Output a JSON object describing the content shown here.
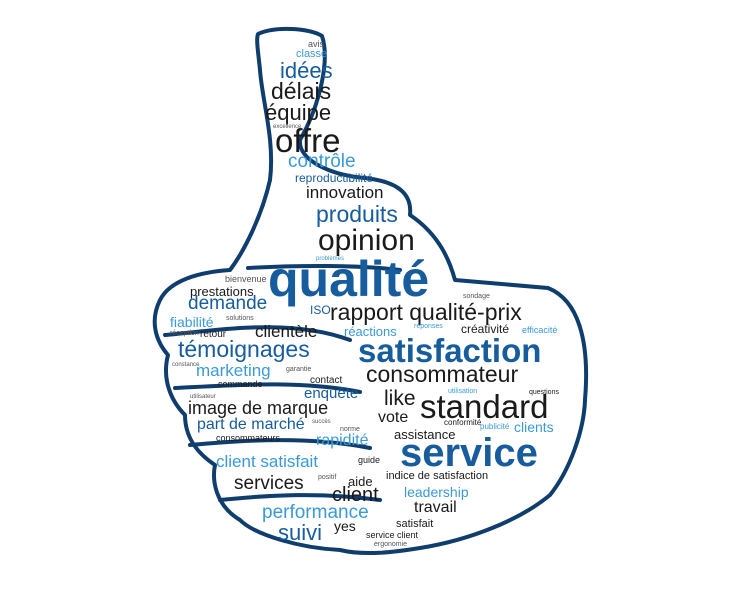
{
  "colors": {
    "outline": "#0e3d6e",
    "dark": "#1a1a1a",
    "blue": "#175c9c",
    "light_blue": "#3b9ad6",
    "gray": "#555555",
    "background": "#ffffff"
  },
  "words": {
    "avis": "avis",
    "classe": "classe",
    "idees": "idées",
    "delais": "délais",
    "equipe": "équipe",
    "excellence": "excellence",
    "offre": "offre",
    "controle": "contrôle",
    "reproductibilite": "reproductibilité",
    "innovation": "innovation",
    "produits": "produits",
    "opinion": "opinion",
    "problemes": "problèmes",
    "bienvenue": "bienvenue",
    "qualite": "qualité",
    "prestations": "prestations",
    "sondage": "sondage",
    "demande": "demande",
    "iso": "ISO",
    "rapport": "rapport qualité-prix",
    "fiabilite": "fiabilité",
    "solutions": "solutions",
    "reponses": "réponses",
    "reception": "réception",
    "retour": "retour",
    "clientele": "clientèle",
    "reactions": "réactions",
    "creativite": "créativité",
    "efficacite": "efficacité",
    "constance": "constance",
    "temoignages": "témoignages",
    "satisfaction": "satisfaction",
    "marketing": "marketing",
    "garantie": "garantie",
    "commande": "commande",
    "consommateur": "consommateur",
    "contact": "contact",
    "utilisation": "utilisation",
    "utilisateur": "utilisateur",
    "enquete": "enquête",
    "like": "like",
    "questions": "questions",
    "image_marque": "image de marque",
    "standard": "standard",
    "succes": "succès",
    "vote": "vote",
    "conformite": "conformité",
    "part_marche": "part de marché",
    "norme": "norme",
    "publicite": "publicité",
    "clients": "clients",
    "consommateurs": "consommateurs",
    "assistance": "assistance",
    "rapidite": "rapidité",
    "service": "service",
    "client_satisfait": "client satisfait",
    "guide": "guide",
    "indice": "indice de satisfaction",
    "services": "services",
    "positif": "positif",
    "aide": "aide",
    "client": "client",
    "leadership": "leadership",
    "performance": "performance",
    "travail": "travail",
    "suivi": "suivi",
    "yes": "yes",
    "satisfait": "satisfait",
    "service_client": "service client",
    "ergonomie": "ergonomie"
  }
}
